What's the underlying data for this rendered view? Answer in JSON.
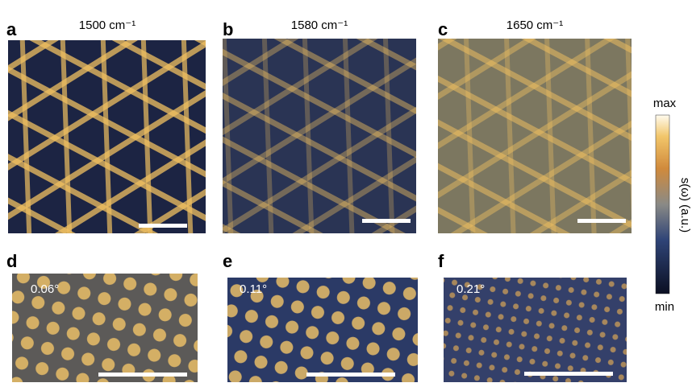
{
  "panels": [
    {
      "label": "a",
      "title": "1500 cm⁻¹"
    },
    {
      "label": "b",
      "title": "1580 cm⁻¹"
    },
    {
      "label": "c",
      "title": "1650 cm⁻¹"
    },
    {
      "label": "d",
      "angle": "0.06°"
    },
    {
      "label": "e",
      "angle": "0.11°"
    },
    {
      "label": "f",
      "angle": "0.21°"
    }
  ],
  "colorbar": {
    "max": "max",
    "min": "min",
    "label": "s(ω) (a.u.)"
  }
}
